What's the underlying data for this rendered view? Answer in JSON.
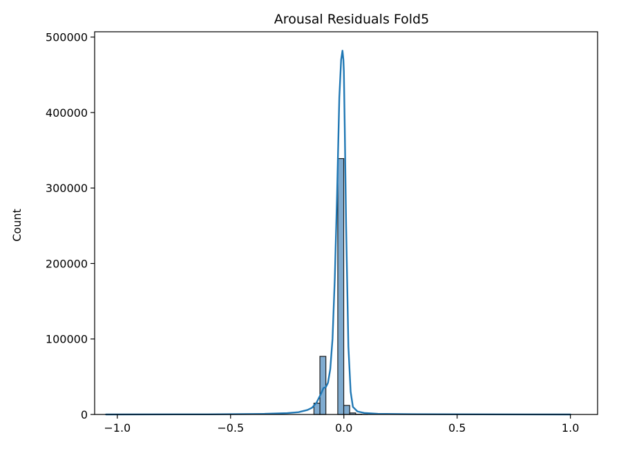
{
  "chart_data": {
    "type": "bar",
    "title": "Arousal Residuals Fold5",
    "xlabel": "",
    "ylabel": "Count",
    "xlim": [
      -1.1,
      1.12
    ],
    "ylim": [
      0,
      507000
    ],
    "grid": false,
    "xticks": [
      -1.0,
      -0.5,
      0.0,
      0.5,
      1.0
    ],
    "xtick_labels": [
      "−1.0",
      "−0.5",
      "0.0",
      "0.5",
      "1.0"
    ],
    "yticks": [
      0,
      100000,
      200000,
      300000,
      400000,
      500000
    ],
    "ytick_labels": [
      "0",
      "100000",
      "200000",
      "300000",
      "400000",
      "500000"
    ],
    "bin_width": 0.0263,
    "bins": [
      {
        "start": -0.132,
        "end": -0.1057,
        "count": 15000
      },
      {
        "start": -0.1057,
        "end": -0.0794,
        "count": 77000
      },
      {
        "start": -0.0794,
        "end": -0.0531,
        "count": 0
      },
      {
        "start": -0.0531,
        "end": -0.0268,
        "count": 0
      },
      {
        "start": -0.0268,
        "end": -0.0005,
        "count": 339000
      },
      {
        "start": -0.0005,
        "end": 0.0258,
        "count": 12000
      },
      {
        "start": 0.0258,
        "end": 0.0521,
        "count": 2000
      },
      {
        "start": 0.0521,
        "end": 0.0784,
        "count": 300
      },
      {
        "start": 0.0784,
        "end": 0.1047,
        "count": 100
      }
    ],
    "kde": {
      "x": [
        -1.05,
        -0.6,
        -0.35,
        -0.25,
        -0.2,
        -0.16,
        -0.14,
        -0.12,
        -0.1,
        -0.09,
        -0.08,
        -0.07,
        -0.06,
        -0.05,
        -0.04,
        -0.03,
        -0.02,
        -0.012,
        -0.006,
        -0.002,
        0.0,
        0.004,
        0.01,
        0.02,
        0.03,
        0.04,
        0.06,
        0.09,
        0.15,
        0.3,
        0.6,
        1.0
      ],
      "y": [
        0,
        200,
        800,
        1800,
        3000,
        6000,
        9000,
        16000,
        28000,
        35000,
        36000,
        42000,
        60000,
        100000,
        180000,
        290000,
        420000,
        470000,
        482000,
        470000,
        455000,
        380000,
        250000,
        90000,
        30000,
        10000,
        4000,
        2000,
        800,
        400,
        200,
        0
      ]
    },
    "colors": {
      "bar_fill": "#7fabd0",
      "bar_edge": "#1a1a1a",
      "kde_line": "#1f77b4",
      "axes": "#000000"
    }
  }
}
